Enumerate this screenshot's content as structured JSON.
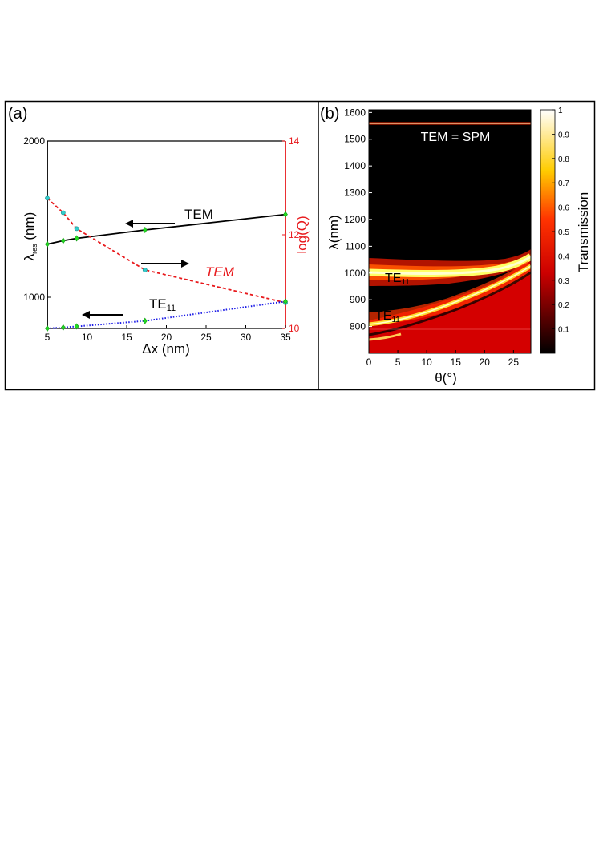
{
  "figure": {
    "panel_a_label": "(a)",
    "panel_b_label": "(b)"
  },
  "chart_data": [
    {
      "panel": "(a)",
      "type": "line",
      "xlabel": "Δx (nm)",
      "ylabel_left": "λ",
      "ylabel_left_sub": "res",
      "ylabel_left_unit": " (nm)",
      "ylabel_right": "log(Q)",
      "xlim": [
        5,
        35
      ],
      "ylim_left": [
        800,
        2000
      ],
      "ylim_right": [
        10,
        14
      ],
      "x_ticks": [
        5,
        10,
        15,
        20,
        25,
        30,
        35
      ],
      "y_ticks_left": [
        1000,
        2000
      ],
      "y_ticks_right": [
        10,
        12,
        14
      ],
      "grid": false,
      "colors": {
        "left_axis": "#000000",
        "right_axis": "#e8191c",
        "marker_left": "#22dd22",
        "marker_right": "#33cccc"
      },
      "series": [
        {
          "name": "TEM",
          "axis": "left",
          "color": "#000000",
          "dash": "solid",
          "marker": "diamond",
          "x": [
            5.0,
            7.0,
            8.7,
            17.3,
            35.0
          ],
          "y": [
            1340,
            1362,
            1377,
            1431,
            1530
          ]
        },
        {
          "name": "TEM",
          "axis": "right",
          "color": "#e8191c",
          "dash": "dashed",
          "marker": "circle",
          "x": [
            5.0,
            7.0,
            8.7,
            17.3,
            35.0
          ],
          "y": [
            12.78,
            12.47,
            12.13,
            11.25,
            10.55
          ]
        },
        {
          "name": "TE11",
          "axis": "left",
          "color": "#1a1ae6",
          "dash": "dotted",
          "marker": "diamond",
          "x": [
            5.0,
            7.0,
            8.7,
            17.3,
            35.0
          ],
          "y": [
            800,
            806,
            813,
            848,
            973
          ]
        }
      ],
      "annotations": [
        {
          "text": "TEM",
          "color": "#000000",
          "arrow": "left"
        },
        {
          "text": "TEM",
          "color": "#e8191c",
          "arrow": "right",
          "italic": true
        },
        {
          "text": "TE",
          "sub": "11",
          "color": "#000000",
          "arrow": "left"
        }
      ]
    },
    {
      "panel": "(b)",
      "type": "heatmap",
      "xlabel": "θ(°)",
      "ylabel": "λ(nm)",
      "xlim": [
        0,
        28
      ],
      "ylim": [
        700,
        1610
      ],
      "x_ticks": [
        0,
        5,
        10,
        15,
        20,
        25
      ],
      "y_ticks": [
        800,
        900,
        1000,
        1100,
        1200,
        1300,
        1400,
        1500,
        1600
      ],
      "colorbar": {
        "label": "Transmission",
        "range": [
          0,
          1
        ],
        "ticks": [
          0.1,
          0.2,
          0.3,
          0.4,
          0.5,
          0.6,
          0.7,
          0.8,
          0.9,
          1
        ],
        "colormap": "hot"
      },
      "features": [
        {
          "label": "TEM = SPM",
          "type": "horizontal band",
          "lambda_nm": 1555
        },
        {
          "label": "TE",
          "sub": "11",
          "type": "dispersive band",
          "theta": [
            0,
            5,
            10,
            15,
            20,
            25,
            28
          ],
          "lambda_nm": [
            985,
            985,
            988,
            993,
            1002,
            1030,
            1060
          ]
        },
        {
          "label": "TE",
          "sub": "11",
          "type": "dispersive band",
          "theta": [
            0,
            5,
            10,
            15,
            20,
            25,
            28
          ],
          "lambda_nm": [
            795,
            810,
            842,
            880,
            925,
            985,
            1015
          ]
        }
      ]
    }
  ]
}
